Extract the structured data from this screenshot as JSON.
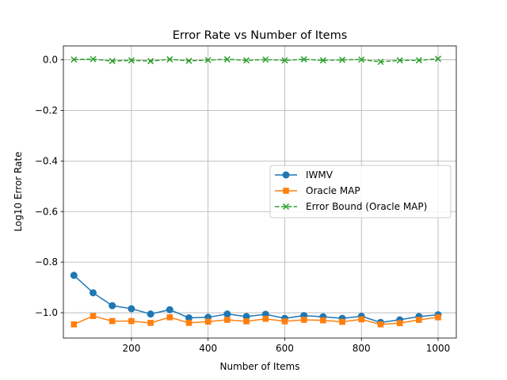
{
  "chart_data": {
    "type": "line",
    "title": "Error Rate vs Number of Items",
    "xlabel": "Number of Items",
    "ylabel": "Log10 Error Rate",
    "xlim": [
      22.5,
      1047.5
    ],
    "ylim": [
      -1.1,
      0.055
    ],
    "xticks": [
      200,
      400,
      600,
      800,
      1000
    ],
    "xtick_labels": [
      "200",
      "400",
      "600",
      "800",
      "1000"
    ],
    "yticks": [
      0.0,
      -0.2,
      -0.4,
      -0.6,
      -0.8,
      -1.0
    ],
    "ytick_labels": [
      "0.0",
      "−0.2",
      "−0.4",
      "−0.6",
      "−0.8",
      "−1.0"
    ],
    "grid": true,
    "legend": "center-right",
    "x": [
      50,
      100,
      150,
      200,
      250,
      300,
      350,
      400,
      450,
      500,
      550,
      600,
      650,
      700,
      750,
      800,
      850,
      900,
      950,
      1000
    ],
    "series": [
      {
        "name": "IWMV",
        "color": "#1f77b4",
        "marker": "circle",
        "linestyle": "solid",
        "values": [
          -0.852,
          -0.921,
          -0.972,
          -0.984,
          -1.005,
          -0.988,
          -1.02,
          -1.018,
          -1.005,
          -1.015,
          -1.006,
          -1.022,
          -1.011,
          -1.016,
          -1.022,
          -1.014,
          -1.038,
          -1.028,
          -1.015,
          -1.008
        ]
      },
      {
        "name": "Oracle MAP",
        "color": "#ff7f0e",
        "marker": "square",
        "linestyle": "solid",
        "values": [
          -1.046,
          -1.013,
          -1.033,
          -1.033,
          -1.04,
          -1.018,
          -1.04,
          -1.035,
          -1.028,
          -1.034,
          -1.024,
          -1.034,
          -1.028,
          -1.03,
          -1.036,
          -1.026,
          -1.046,
          -1.041,
          -1.028,
          -1.018
        ]
      },
      {
        "name": "Error Bound (Oracle MAP)",
        "color": "#2ca02c",
        "marker": "x",
        "linestyle": "dashed",
        "values": [
          0.001,
          0.003,
          -0.005,
          -0.002,
          -0.005,
          0.002,
          -0.004,
          -0.001,
          0.002,
          -0.002,
          0.001,
          -0.002,
          0.002,
          -0.002,
          0.0,
          0.001,
          -0.008,
          -0.002,
          -0.002,
          0.004
        ]
      }
    ]
  }
}
